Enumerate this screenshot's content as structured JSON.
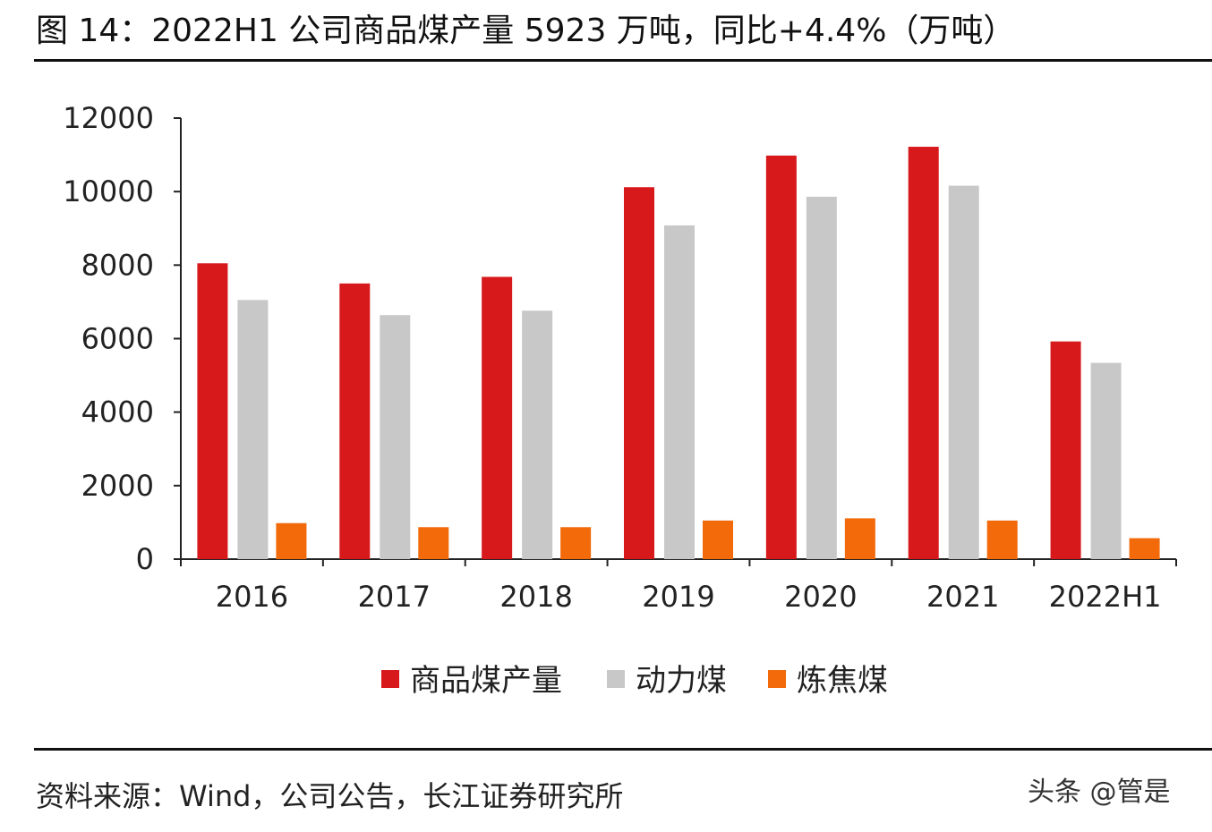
{
  "title": "图 14：2022H1 公司商品煤产量 5923 万吨，同比+4.4%（万吨）",
  "source": "资料来源：Wind，公司公告，长江证券研究所",
  "watermark": "头条 @管是",
  "chart_data": {
    "type": "bar",
    "title": "图 14：2022H1 公司商品煤产量 5923 万吨，同比+4.4%（万吨）",
    "xlabel": "",
    "ylabel": "",
    "ylim": [
      0,
      12000
    ],
    "yticks": [
      "0",
      "2000",
      "4000",
      "6000",
      "8000",
      "10000",
      "12000"
    ],
    "categories": [
      "2016",
      "2017",
      "2018",
      "2019",
      "2020",
      "2021",
      "2022H1"
    ],
    "series": [
      {
        "name": "商品煤产量",
        "color": "#d7191c",
        "values": [
          8050,
          7500,
          7680,
          10120,
          10980,
          11220,
          5923
        ]
      },
      {
        "name": "动力煤",
        "color": "#c8c8c8",
        "values": [
          7050,
          6640,
          6760,
          9080,
          9860,
          10160,
          5340
        ]
      },
      {
        "name": "炼焦煤",
        "color": "#f26a0a",
        "values": [
          980,
          870,
          870,
          1050,
          1110,
          1050,
          570
        ]
      }
    ],
    "grid": false,
    "legend": "bottom"
  }
}
